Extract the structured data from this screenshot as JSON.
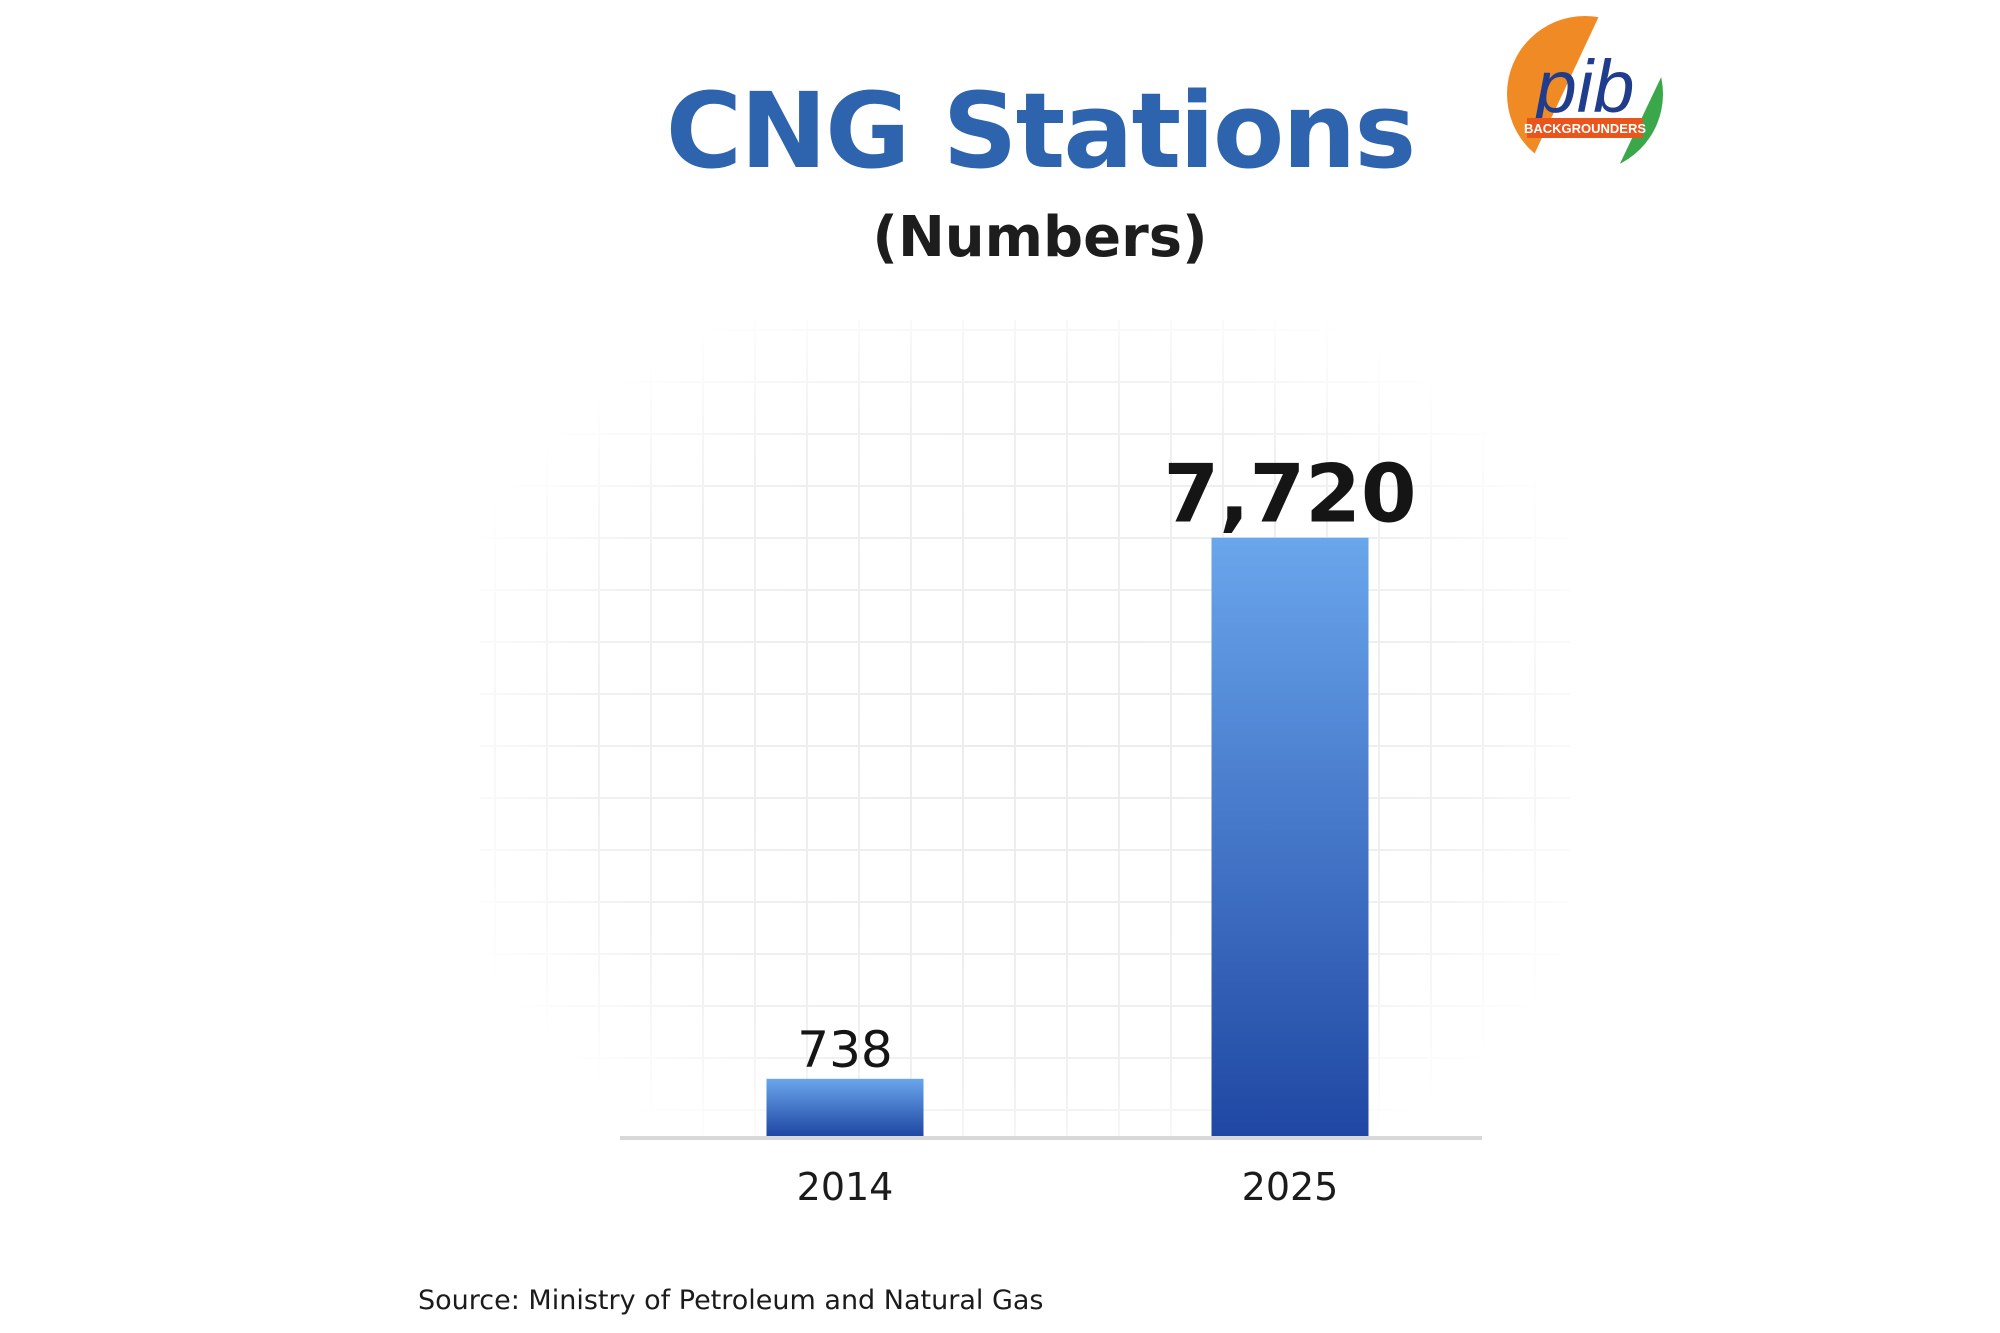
{
  "header": {
    "title": "CNG Stations",
    "subtitle": "(Numbers)"
  },
  "logo": {
    "text": "pib",
    "tagline": "BACKGROUNDERS"
  },
  "chart_data": {
    "type": "bar",
    "title": "CNG Stations",
    "subtitle": "(Numbers)",
    "categories": [
      "2014",
      "2025"
    ],
    "values": [
      738,
      7720
    ],
    "value_labels": [
      "738",
      "7,720"
    ],
    "xlabel": "",
    "ylabel": "",
    "ylim": [
      0,
      8800
    ],
    "grid": true,
    "legend": "none",
    "bar_color_top": "#6aa6ec",
    "bar_color_bottom": "#1f47a3"
  },
  "footer": {
    "source": "Source: Ministry of Petroleum and Natural Gas"
  }
}
